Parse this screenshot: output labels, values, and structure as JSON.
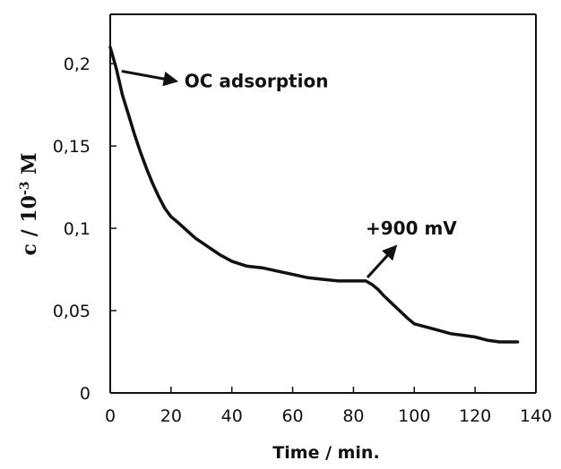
{
  "chart_data": {
    "type": "line",
    "title": "",
    "xlabel": "Time / min.",
    "ylabel": "c / 10",
    "ylabel_superscript": "-3",
    "ylabel_suffix": " M",
    "xlim": [
      0,
      140
    ],
    "ylim": [
      0,
      0.23
    ],
    "x_ticks": [
      0,
      20,
      40,
      60,
      80,
      100,
      120,
      140
    ],
    "x_tick_labels": [
      "0",
      "20",
      "40",
      "60",
      "80",
      "100",
      "120",
      "140"
    ],
    "y_ticks": [
      0,
      0.05,
      0.1,
      0.15,
      0.2
    ],
    "y_tick_labels": [
      "0",
      "0,05",
      "0,1",
      "0,15",
      "0,2"
    ],
    "grid": false,
    "legend": "none",
    "line_color": "#111111",
    "series": [
      {
        "x": [
          0,
          2,
          4,
          6,
          8,
          10,
          12,
          14,
          16,
          18,
          20,
          22,
          25,
          28,
          32,
          36,
          40,
          45,
          50,
          55,
          60,
          65,
          70,
          75,
          80,
          84,
          86,
          88,
          90,
          94,
          98,
          100,
          104,
          108,
          112,
          116,
          120,
          124,
          128,
          131,
          134
        ],
        "y": [
          0.21,
          0.197,
          0.181,
          0.169,
          0.157,
          0.146,
          0.136,
          0.127,
          0.119,
          0.112,
          0.107,
          0.104,
          0.099,
          0.094,
          0.089,
          0.084,
          0.08,
          0.077,
          0.076,
          0.074,
          0.072,
          0.07,
          0.069,
          0.068,
          0.068,
          0.068,
          0.066,
          0.063,
          0.059,
          0.052,
          0.045,
          0.042,
          0.04,
          0.038,
          0.036,
          0.035,
          0.034,
          0.032,
          0.031,
          0.031,
          0.031
        ]
      }
    ],
    "annotations": [
      {
        "text": "OC adsorption",
        "x": 2,
        "y": 0.196
      },
      {
        "text": "+900 mV",
        "x": 84,
        "y": 0.068
      }
    ]
  }
}
